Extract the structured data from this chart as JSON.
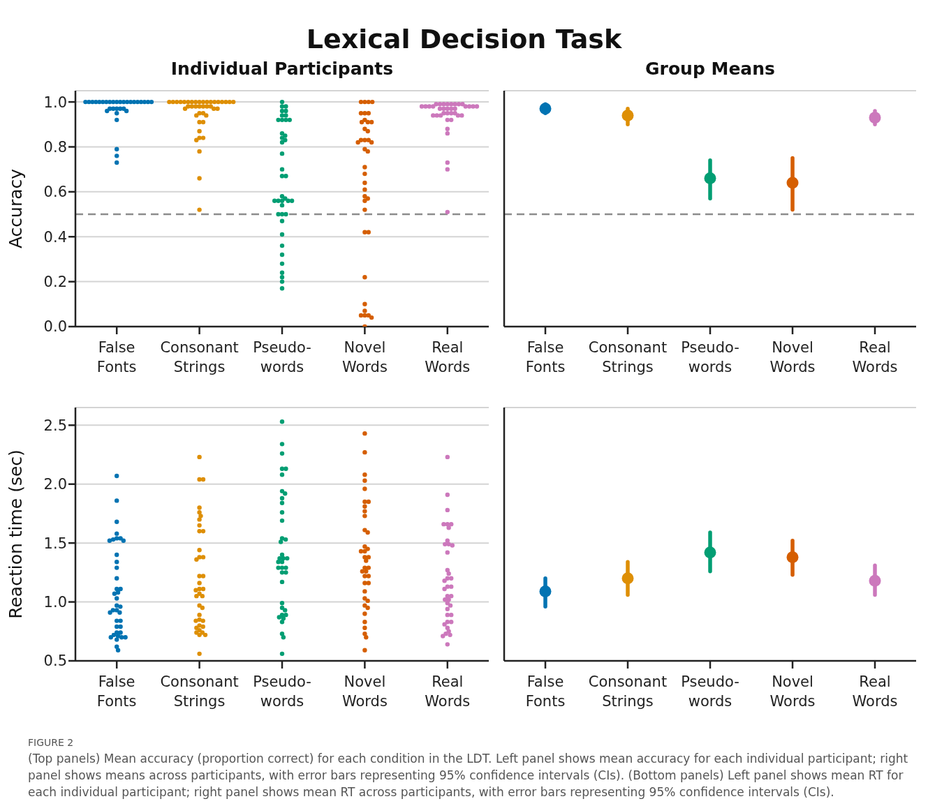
{
  "chart_data": [
    {
      "type": "scatter",
      "title": "Lexical Decision Task",
      "subtitle": "Individual Participants",
      "ylabel": "Accuracy",
      "categories": [
        "False Fonts",
        "Consonant Strings",
        "Pseudo-words",
        "Novel Words",
        "Real Words"
      ],
      "ylim": [
        0,
        1.05
      ],
      "yticks": [
        {
          "value": 0,
          "label": "0.0"
        },
        0.2,
        0.4,
        0.6,
        0.8,
        {
          "value": 1,
          "label": "1.0"
        }
      ],
      "grid": "y",
      "marker": "circle",
      "ref_lines": [
        {
          "axis": "y",
          "value": 0.5,
          "color": "#8c8c8c",
          "line_style": "dashed"
        }
      ],
      "series": [
        {
          "color": "#0173b2",
          "x": [
            "False Fonts",
            "False Fonts",
            "False Fonts",
            "False Fonts",
            "False Fonts",
            "False Fonts",
            "False Fonts",
            "False Fonts",
            "False Fonts",
            "False Fonts",
            "False Fonts",
            "False Fonts",
            "False Fonts",
            "False Fonts",
            "False Fonts",
            "False Fonts",
            "False Fonts",
            "False Fonts",
            "False Fonts",
            "False Fonts",
            "False Fonts",
            "False Fonts",
            "False Fonts",
            "False Fonts",
            "False Fonts",
            "False Fonts",
            "False Fonts",
            "False Fonts",
            "False Fonts",
            "False Fonts",
            "False Fonts",
            "False Fonts"
          ],
          "values": [
            1,
            1,
            1,
            1,
            1,
            1,
            1,
            1,
            1,
            1,
            1,
            1,
            1,
            1,
            1,
            1,
            1,
            1,
            1,
            1,
            0.97,
            0.97,
            0.96,
            0.97,
            0.95,
            0.96,
            0.97,
            0.97,
            0.92,
            0.79,
            0.76,
            0.73
          ]
        },
        {
          "color": "#de8f05",
          "x": [
            "Consonant Strings",
            "Consonant Strings",
            "Consonant Strings",
            "Consonant Strings",
            "Consonant Strings",
            "Consonant Strings",
            "Consonant Strings",
            "Consonant Strings",
            "Consonant Strings",
            "Consonant Strings",
            "Consonant Strings",
            "Consonant Strings",
            "Consonant Strings",
            "Consonant Strings",
            "Consonant Strings",
            "Consonant Strings",
            "Consonant Strings",
            "Consonant Strings",
            "Consonant Strings",
            "Consonant Strings",
            "Consonant Strings",
            "Consonant Strings",
            "Consonant Strings",
            "Consonant Strings",
            "Consonant Strings",
            "Consonant Strings",
            "Consonant Strings",
            "Consonant Strings",
            "Consonant Strings",
            "Consonant Strings",
            "Consonant Strings",
            "Consonant Strings",
            "Consonant Strings",
            "Consonant Strings",
            "Consonant Strings",
            "Consonant Strings",
            "Consonant Strings",
            "Consonant Strings",
            "Consonant Strings",
            "Consonant Strings",
            "Consonant Strings"
          ],
          "values": [
            1,
            1,
            1,
            1,
            1,
            1,
            1,
            1,
            1,
            1,
            1,
            1,
            1,
            1,
            1,
            1,
            1,
            1,
            0.98,
            0.98,
            0.98,
            0.98,
            0.98,
            0.98,
            0.98,
            0.97,
            0.97,
            0.97,
            0.95,
            0.95,
            0.94,
            0.94,
            0.91,
            0.91,
            0.87,
            0.84,
            0.84,
            0.83,
            0.78,
            0.66,
            0.52
          ]
        },
        {
          "color": "#029e73",
          "x": [
            "Pseudo-words",
            "Pseudo-words",
            "Pseudo-words",
            "Pseudo-words",
            "Pseudo-words",
            "Pseudo-words",
            "Pseudo-words",
            "Pseudo-words",
            "Pseudo-words",
            "Pseudo-words",
            "Pseudo-words",
            "Pseudo-words",
            "Pseudo-words",
            "Pseudo-words",
            "Pseudo-words",
            "Pseudo-words",
            "Pseudo-words",
            "Pseudo-words",
            "Pseudo-words",
            "Pseudo-words",
            "Pseudo-words",
            "Pseudo-words",
            "Pseudo-words",
            "Pseudo-words",
            "Pseudo-words",
            "Pseudo-words",
            "Pseudo-words",
            "Pseudo-words",
            "Pseudo-words",
            "Pseudo-words",
            "Pseudo-words",
            "Pseudo-words",
            "Pseudo-words",
            "Pseudo-words",
            "Pseudo-words",
            "Pseudo-words",
            "Pseudo-words",
            "Pseudo-words",
            "Pseudo-words",
            "Pseudo-words"
          ],
          "values": [
            1,
            0.98,
            0.98,
            0.96,
            0.96,
            0.94,
            0.94,
            0.92,
            0.92,
            0.92,
            0.92,
            0.86,
            0.85,
            0.84,
            0.83,
            0.82,
            0.77,
            0.7,
            0.67,
            0.67,
            0.58,
            0.57,
            0.56,
            0.56,
            0.56,
            0.56,
            0.56,
            0.54,
            0.5,
            0.5,
            0.5,
            0.47,
            0.41,
            0.36,
            0.32,
            0.28,
            0.24,
            0.22,
            0.2,
            0.17
          ]
        },
        {
          "color": "#d55e00",
          "x": [
            "Novel Words",
            "Novel Words",
            "Novel Words",
            "Novel Words",
            "Novel Words",
            "Novel Words",
            "Novel Words",
            "Novel Words",
            "Novel Words",
            "Novel Words",
            "Novel Words",
            "Novel Words",
            "Novel Words",
            "Novel Words",
            "Novel Words",
            "Novel Words",
            "Novel Words",
            "Novel Words",
            "Novel Words",
            "Novel Words",
            "Novel Words",
            "Novel Words",
            "Novel Words",
            "Novel Words",
            "Novel Words",
            "Novel Words",
            "Novel Words",
            "Novel Words",
            "Novel Words",
            "Novel Words",
            "Novel Words",
            "Novel Words",
            "Novel Words",
            "Novel Words",
            "Novel Words",
            "Novel Words",
            "Novel Words",
            "Novel Words"
          ],
          "values": [
            1,
            1,
            1,
            1,
            0.95,
            0.95,
            0.95,
            0.92,
            0.91,
            0.91,
            0.91,
            0.88,
            0.87,
            0.83,
            0.83,
            0.82,
            0.82,
            0.83,
            0.79,
            0.78,
            0.71,
            0.68,
            0.64,
            0.61,
            0.58,
            0.57,
            0.56,
            0.52,
            0.42,
            0.42,
            0.22,
            0.1,
            0.07,
            0.05,
            0.04,
            0.05,
            0.05,
            0
          ]
        },
        {
          "color": "#cc78bc",
          "x": [
            "Real Words",
            "Real Words",
            "Real Words",
            "Real Words",
            "Real Words",
            "Real Words",
            "Real Words",
            "Real Words",
            "Real Words",
            "Real Words",
            "Real Words",
            "Real Words",
            "Real Words",
            "Real Words",
            "Real Words",
            "Real Words",
            "Real Words",
            "Real Words",
            "Real Words",
            "Real Words",
            "Real Words",
            "Real Words",
            "Real Words",
            "Real Words",
            "Real Words",
            "Real Words",
            "Real Words",
            "Real Words",
            "Real Words",
            "Real Words",
            "Real Words",
            "Real Words",
            "Real Words",
            "Real Words",
            "Real Words",
            "Real Words",
            "Real Words"
          ],
          "values": [
            0.99,
            0.99,
            0.99,
            0.99,
            0.99,
            0.99,
            0.99,
            0.99,
            0.98,
            0.98,
            0.98,
            0.98,
            0.98,
            0.98,
            0.98,
            0.98,
            0.97,
            0.97,
            0.97,
            0.97,
            0.97,
            0.95,
            0.95,
            0.95,
            0.95,
            0.94,
            0.94,
            0.94,
            0.94,
            0.94,
            0.92,
            0.92,
            0.88,
            0.86,
            0.73,
            0.7,
            0.51
          ]
        }
      ]
    },
    {
      "type": "scatter",
      "title": "Group Means",
      "categories": [
        "False Fonts",
        "Consonant Strings",
        "Pseudo-words",
        "Novel Words",
        "Real Words"
      ],
      "ylim": [
        0,
        1.05
      ],
      "yticks": [
        {
          "value": 0,
          "label": null
        },
        {
          "value": 0.2,
          "label": null
        },
        {
          "value": 0.4,
          "label": null
        },
        {
          "value": 0.6,
          "label": null
        },
        {
          "value": 0.8,
          "label": null
        },
        {
          "value": 1,
          "label": null
        }
      ],
      "tick_labels": "x",
      "grid": "y",
      "marker": "circle",
      "ref_lines": [
        {
          "axis": "y",
          "value": 0.5,
          "color": "#8c8c8c",
          "line_style": "dashed"
        }
      ],
      "values": [
        0.97,
        0.94,
        0.66,
        0.64,
        0.93
      ],
      "colors": [
        "#0173b2",
        "#de8f05",
        "#029e73",
        "#d55e00",
        "#cc78bc"
      ],
      "errors": [
        [
          0.95,
          0.99
        ],
        [
          0.9,
          0.97
        ],
        [
          0.57,
          0.74
        ],
        [
          0.52,
          0.75
        ],
        [
          0.9,
          0.96
        ]
      ]
    },
    {
      "type": "scatter",
      "ylabel": "Reaction time (sec)",
      "categories": [
        "False Fonts",
        "Consonant Strings",
        "Pseudo-words",
        "Novel Words",
        "Real Words"
      ],
      "ylim": [
        0.5,
        2.65
      ],
      "yticks": [
        0.5,
        {
          "value": 1,
          "label": "1.0"
        },
        1.5,
        {
          "value": 2,
          "label": "2.0"
        },
        2.5
      ],
      "grid": "y",
      "marker": "circle",
      "series": [
        {
          "color": "#0173b2",
          "x": [
            "False Fonts",
            "False Fonts",
            "False Fonts",
            "False Fonts",
            "False Fonts",
            "False Fonts",
            "False Fonts",
            "False Fonts",
            "False Fonts",
            "False Fonts",
            "False Fonts",
            "False Fonts",
            "False Fonts",
            "False Fonts",
            "False Fonts",
            "False Fonts",
            "False Fonts",
            "False Fonts",
            "False Fonts",
            "False Fonts",
            "False Fonts",
            "False Fonts",
            "False Fonts",
            "False Fonts",
            "False Fonts",
            "False Fonts",
            "False Fonts",
            "False Fonts",
            "False Fonts",
            "False Fonts",
            "False Fonts",
            "False Fonts",
            "False Fonts",
            "False Fonts",
            "False Fonts",
            "False Fonts",
            "False Fonts",
            "False Fonts"
          ],
          "values": [
            2.07,
            1.86,
            1.68,
            1.58,
            1.54,
            1.54,
            1.53,
            1.52,
            1.52,
            1.4,
            1.34,
            1.29,
            1.2,
            1.11,
            1.11,
            1.08,
            1.07,
            1.03,
            0.97,
            0.96,
            0.93,
            0.93,
            0.91,
            0.91,
            0.84,
            0.84,
            0.79,
            0.79,
            0.74,
            0.74,
            0.72,
            0.71,
            0.7,
            0.7,
            0.7,
            0.68,
            0.62,
            0.59
          ]
        },
        {
          "color": "#de8f05",
          "x": [
            "Consonant Strings",
            "Consonant Strings",
            "Consonant Strings",
            "Consonant Strings",
            "Consonant Strings",
            "Consonant Strings",
            "Consonant Strings",
            "Consonant Strings",
            "Consonant Strings",
            "Consonant Strings",
            "Consonant Strings",
            "Consonant Strings",
            "Consonant Strings",
            "Consonant Strings",
            "Consonant Strings",
            "Consonant Strings",
            "Consonant Strings",
            "Consonant Strings",
            "Consonant Strings",
            "Consonant Strings",
            "Consonant Strings",
            "Consonant Strings",
            "Consonant Strings",
            "Consonant Strings",
            "Consonant Strings",
            "Consonant Strings",
            "Consonant Strings",
            "Consonant Strings",
            "Consonant Strings",
            "Consonant Strings",
            "Consonant Strings",
            "Consonant Strings",
            "Consonant Strings",
            "Consonant Strings",
            "Consonant Strings",
            "Consonant Strings",
            "Consonant Strings",
            "Consonant Strings"
          ],
          "values": [
            2.23,
            2.04,
            2.04,
            1.8,
            1.76,
            1.73,
            1.7,
            1.65,
            1.6,
            1.6,
            1.44,
            1.38,
            1.38,
            1.36,
            1.22,
            1.22,
            1.16,
            1.11,
            1.11,
            1.1,
            1.05,
            1.05,
            1.07,
            0.97,
            0.95,
            0.89,
            0.84,
            0.84,
            0.85,
            0.79,
            0.76,
            0.78,
            0.8,
            0.72,
            0.72,
            0.74,
            0.74,
            0.56
          ]
        },
        {
          "color": "#029e73",
          "x": [
            "Pseudo-words",
            "Pseudo-words",
            "Pseudo-words",
            "Pseudo-words",
            "Pseudo-words",
            "Pseudo-words",
            "Pseudo-words",
            "Pseudo-words",
            "Pseudo-words",
            "Pseudo-words",
            "Pseudo-words",
            "Pseudo-words",
            "Pseudo-words",
            "Pseudo-words",
            "Pseudo-words",
            "Pseudo-words",
            "Pseudo-words",
            "Pseudo-words",
            "Pseudo-words",
            "Pseudo-words",
            "Pseudo-words",
            "Pseudo-words",
            "Pseudo-words",
            "Pseudo-words",
            "Pseudo-words",
            "Pseudo-words",
            "Pseudo-words",
            "Pseudo-words",
            "Pseudo-words",
            "Pseudo-words",
            "Pseudo-words",
            "Pseudo-words",
            "Pseudo-words",
            "Pseudo-words",
            "Pseudo-words",
            "Pseudo-words",
            "Pseudo-words",
            "Pseudo-words"
          ],
          "values": [
            2.53,
            2.34,
            2.26,
            2.13,
            2.13,
            2.08,
            1.94,
            1.92,
            1.88,
            1.84,
            1.76,
            1.69,
            1.54,
            1.53,
            1.51,
            1.37,
            1.37,
            1.37,
            1.34,
            1.34,
            1.29,
            1.29,
            1.29,
            1.25,
            1.25,
            1.4,
            1.17,
            0.99,
            0.95,
            0.93,
            0.89,
            0.89,
            0.86,
            0.87,
            0.83,
            0.73,
            0.7,
            0.56
          ]
        },
        {
          "color": "#d55e00",
          "x": [
            "Novel Words",
            "Novel Words",
            "Novel Words",
            "Novel Words",
            "Novel Words",
            "Novel Words",
            "Novel Words",
            "Novel Words",
            "Novel Words",
            "Novel Words",
            "Novel Words",
            "Novel Words",
            "Novel Words",
            "Novel Words",
            "Novel Words",
            "Novel Words",
            "Novel Words",
            "Novel Words",
            "Novel Words",
            "Novel Words",
            "Novel Words",
            "Novel Words",
            "Novel Words",
            "Novel Words",
            "Novel Words",
            "Novel Words",
            "Novel Words",
            "Novel Words",
            "Novel Words",
            "Novel Words",
            "Novel Words",
            "Novel Words",
            "Novel Words",
            "Novel Words",
            "Novel Words",
            "Novel Words",
            "Novel Words",
            "Novel Words"
          ],
          "values": [
            2.43,
            2.27,
            2.08,
            2.03,
            1.96,
            1.85,
            1.85,
            1.81,
            1.77,
            1.73,
            1.61,
            1.59,
            1.47,
            1.45,
            1.43,
            1.43,
            1.38,
            1.38,
            1.35,
            1.29,
            1.29,
            1.26,
            1.26,
            1.22,
            1.22,
            1.16,
            1.16,
            1.09,
            1.03,
            1.01,
            0.97,
            0.95,
            0.9,
            0.83,
            0.78,
            0.73,
            0.7,
            0.59
          ]
        },
        {
          "color": "#cc78bc",
          "x": [
            "Real Words",
            "Real Words",
            "Real Words",
            "Real Words",
            "Real Words",
            "Real Words",
            "Real Words",
            "Real Words",
            "Real Words",
            "Real Words",
            "Real Words",
            "Real Words",
            "Real Words",
            "Real Words",
            "Real Words",
            "Real Words",
            "Real Words",
            "Real Words",
            "Real Words",
            "Real Words",
            "Real Words",
            "Real Words",
            "Real Words",
            "Real Words",
            "Real Words",
            "Real Words",
            "Real Words",
            "Real Words",
            "Real Words",
            "Real Words",
            "Real Words",
            "Real Words",
            "Real Words",
            "Real Words",
            "Real Words",
            "Real Words",
            "Real Words",
            "Real Words"
          ],
          "values": [
            2.23,
            1.91,
            1.78,
            1.66,
            1.66,
            1.66,
            1.63,
            1.49,
            1.49,
            1.52,
            1.48,
            1.42,
            1.27,
            1.24,
            1.2,
            1.2,
            1.18,
            1.13,
            1.13,
            1.11,
            1.05,
            1.05,
            1.02,
            1.02,
            0.99,
            0.97,
            0.94,
            0.89,
            0.89,
            0.83,
            0.83,
            0.81,
            0.78,
            0.75,
            0.72,
            0.73,
            0.71,
            0.64
          ]
        }
      ]
    },
    {
      "type": "scatter",
      "categories": [
        "False Fonts",
        "Consonant Strings",
        "Pseudo-words",
        "Novel Words",
        "Real Words"
      ],
      "ylim": [
        0.5,
        2.65
      ],
      "yticks": [
        {
          "value": 0.5,
          "label": null
        },
        {
          "value": 1,
          "label": null
        },
        {
          "value": 1.5,
          "label": null
        },
        {
          "value": 2,
          "label": null
        },
        {
          "value": 2.5,
          "label": null
        }
      ],
      "tick_labels": "x",
      "grid": "y",
      "marker": "circle",
      "values": [
        1.09,
        1.2,
        1.42,
        1.38,
        1.18
      ],
      "colors": [
        "#0173b2",
        "#de8f05",
        "#029e73",
        "#d55e00",
        "#cc78bc"
      ],
      "errors": [
        [
          0.96,
          1.2
        ],
        [
          1.06,
          1.34
        ],
        [
          1.26,
          1.59
        ],
        [
          1.23,
          1.52
        ],
        [
          1.06,
          1.31
        ]
      ],
      "annotations": [
        "FIGURE 2",
        "(Top panels) Mean accuracy (proportion correct) for each condition in the LDT. Left panel shows mean accuracy for each individual participant; right panel shows means across participants, with error bars representing 95% confidence intervals (CIs). (Bottom panels) Left panel shows mean RT for each individual participant; right panel shows mean RT across participants, with error bars representing 95% confidence intervals (CIs)."
      ]
    }
  ]
}
